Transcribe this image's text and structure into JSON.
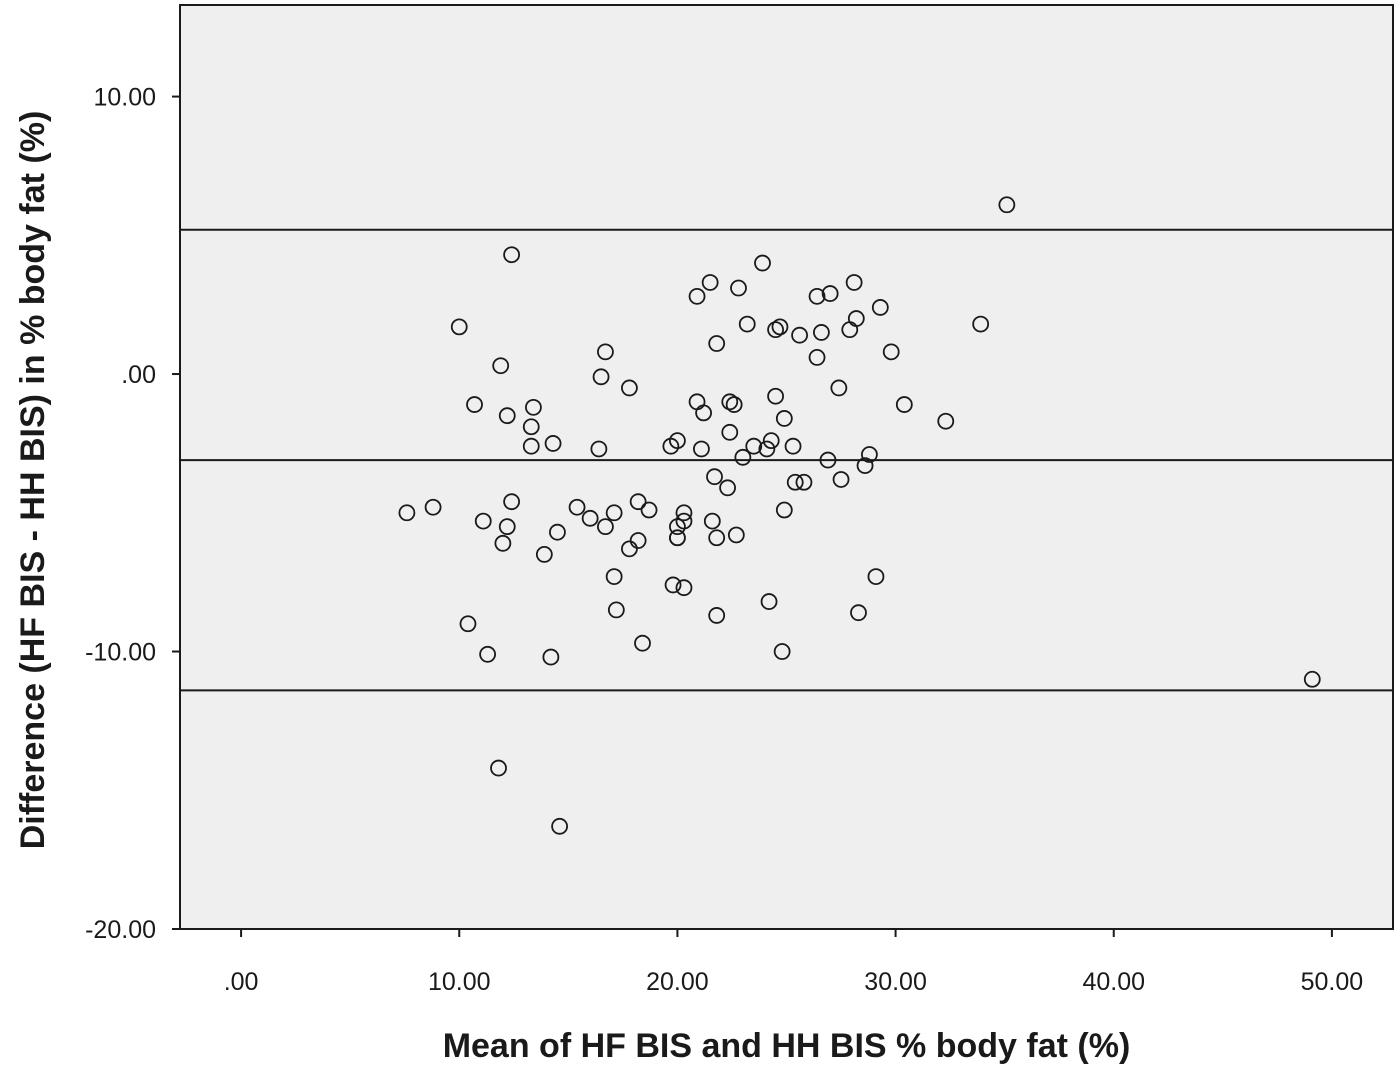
{
  "chart_data": {
    "type": "scatter",
    "title": "",
    "xlabel": "Mean of HF BIS and HH BIS % body fat (%)",
    "ylabel": "Difference (HF BIS - HH BIS) in % body fat (%)",
    "xlim": [
      -2.8,
      52.8
    ],
    "ylim": [
      -20,
      13.3
    ],
    "x_ticks": [
      {
        "value": 0,
        "label": ".00"
      },
      {
        "value": 10,
        "label": "10.00"
      },
      {
        "value": 20,
        "label": "20.00"
      },
      {
        "value": 30,
        "label": "30.00"
      },
      {
        "value": 40,
        "label": "40.00"
      },
      {
        "value": 50,
        "label": "50.00"
      }
    ],
    "y_ticks": [
      {
        "value": 10,
        "label": "10.00"
      },
      {
        "value": 0,
        "label": ".00"
      },
      {
        "value": -10,
        "label": "-10.00"
      },
      {
        "value": -20,
        "label": "-20.00"
      }
    ],
    "grid": false,
    "legend": "none",
    "reference_lines": [
      {
        "name": "upper limit of agreement",
        "y": 5.2
      },
      {
        "name": "mean difference",
        "y": -3.1
      },
      {
        "name": "lower limit of agreement",
        "y": -11.4
      }
    ],
    "colors": {
      "plot_background": "#efefef",
      "marker_stroke": "#1a1a1a",
      "line": "#1a1a1a"
    },
    "points": [
      [
        35.1,
        6.1
      ],
      [
        12.4,
        4.3
      ],
      [
        23.9,
        4.0
      ],
      [
        21.5,
        3.3
      ],
      [
        22.8,
        3.1
      ],
      [
        28.1,
        3.3
      ],
      [
        20.9,
        2.8
      ],
      [
        26.4,
        2.8
      ],
      [
        27.0,
        2.9
      ],
      [
        29.3,
        2.4
      ],
      [
        28.2,
        2.0
      ],
      [
        33.9,
        1.8
      ],
      [
        10.0,
        1.7
      ],
      [
        23.2,
        1.8
      ],
      [
        24.5,
        1.6
      ],
      [
        24.7,
        1.7
      ],
      [
        26.6,
        1.5
      ],
      [
        25.6,
        1.4
      ],
      [
        27.9,
        1.6
      ],
      [
        21.8,
        1.1
      ],
      [
        16.7,
        0.8
      ],
      [
        29.8,
        0.8
      ],
      [
        26.4,
        0.6
      ],
      [
        11.9,
        0.3
      ],
      [
        16.5,
        -0.1
      ],
      [
        17.8,
        -0.5
      ],
      [
        27.4,
        -0.5
      ],
      [
        24.5,
        -0.8
      ],
      [
        10.7,
        -1.1
      ],
      [
        13.4,
        -1.2
      ],
      [
        12.2,
        -1.5
      ],
      [
        20.9,
        -1.0
      ],
      [
        21.2,
        -1.4
      ],
      [
        22.4,
        -1.0
      ],
      [
        22.6,
        -1.1
      ],
      [
        24.9,
        -1.6
      ],
      [
        30.4,
        -1.1
      ],
      [
        32.3,
        -1.7
      ],
      [
        13.3,
        -1.9
      ],
      [
        13.3,
        -2.6
      ],
      [
        14.3,
        -2.5
      ],
      [
        16.4,
        -2.7
      ],
      [
        19.7,
        -2.6
      ],
      [
        20.0,
        -2.4
      ],
      [
        21.1,
        -2.7
      ],
      [
        22.4,
        -2.1
      ],
      [
        23.5,
        -2.6
      ],
      [
        24.1,
        -2.7
      ],
      [
        24.3,
        -2.4
      ],
      [
        25.3,
        -2.6
      ],
      [
        23.0,
        -3.0
      ],
      [
        26.9,
        -3.1
      ],
      [
        28.6,
        -3.3
      ],
      [
        28.8,
        -2.9
      ],
      [
        21.7,
        -3.7
      ],
      [
        22.3,
        -4.1
      ],
      [
        25.4,
        -3.9
      ],
      [
        25.8,
        -3.9
      ],
      [
        27.5,
        -3.8
      ],
      [
        12.4,
        -4.6
      ],
      [
        18.2,
        -4.6
      ],
      [
        7.6,
        -5.0
      ],
      [
        8.8,
        -4.8
      ],
      [
        11.1,
        -5.3
      ],
      [
        12.2,
        -5.5
      ],
      [
        12.0,
        -6.1
      ],
      [
        14.5,
        -5.7
      ],
      [
        15.4,
        -4.8
      ],
      [
        16.0,
        -5.2
      ],
      [
        16.7,
        -5.5
      ],
      [
        17.1,
        -5.0
      ],
      [
        18.7,
        -4.9
      ],
      [
        20.3,
        -5.0
      ],
      [
        20.3,
        -5.3
      ],
      [
        20.0,
        -5.5
      ],
      [
        20.0,
        -5.9
      ],
      [
        20.0,
        -5.9
      ],
      [
        21.6,
        -5.3
      ],
      [
        21.8,
        -5.9
      ],
      [
        22.7,
        -5.8
      ],
      [
        24.9,
        -4.9
      ],
      [
        13.9,
        -6.5
      ],
      [
        17.8,
        -6.3
      ],
      [
        18.2,
        -6.0
      ],
      [
        17.1,
        -7.3
      ],
      [
        29.1,
        -7.3
      ],
      [
        19.8,
        -7.6
      ],
      [
        20.3,
        -7.7
      ],
      [
        17.2,
        -8.5
      ],
      [
        24.2,
        -8.2
      ],
      [
        21.8,
        -8.7
      ],
      [
        28.3,
        -8.6
      ],
      [
        10.4,
        -9.0
      ],
      [
        18.4,
        -9.7
      ],
      [
        11.3,
        -10.1
      ],
      [
        14.2,
        -10.2
      ],
      [
        24.8,
        -10.0
      ],
      [
        49.1,
        -11.0
      ],
      [
        11.8,
        -14.2
      ],
      [
        14.6,
        -16.3
      ]
    ]
  }
}
